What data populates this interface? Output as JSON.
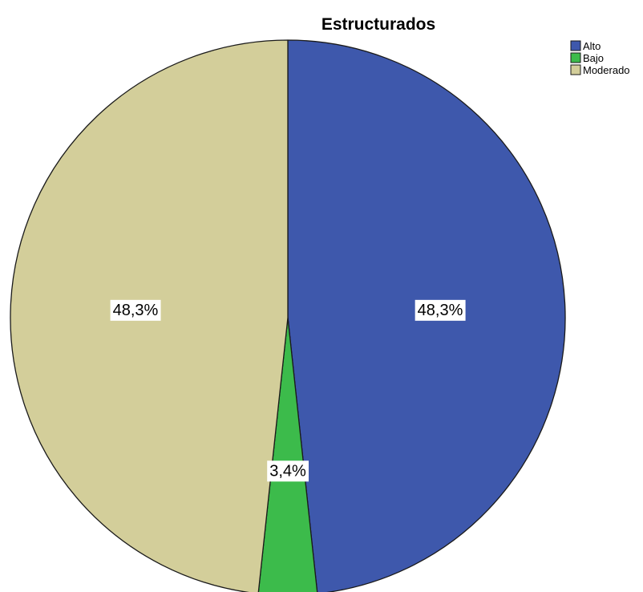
{
  "chart_data": {
    "type": "pie",
    "title": "Estructurados",
    "categories": [
      "Alto",
      "Bajo",
      "Moderado"
    ],
    "values": [
      48.3,
      3.4,
      48.3
    ],
    "labels": [
      "48,3%",
      "3,4%",
      "48,3%"
    ],
    "colors": [
      "#3e58ac",
      "#3cbb4b",
      "#d3ce9a"
    ],
    "start": "top",
    "direction": "clockwise",
    "legend_position": "top-right"
  }
}
